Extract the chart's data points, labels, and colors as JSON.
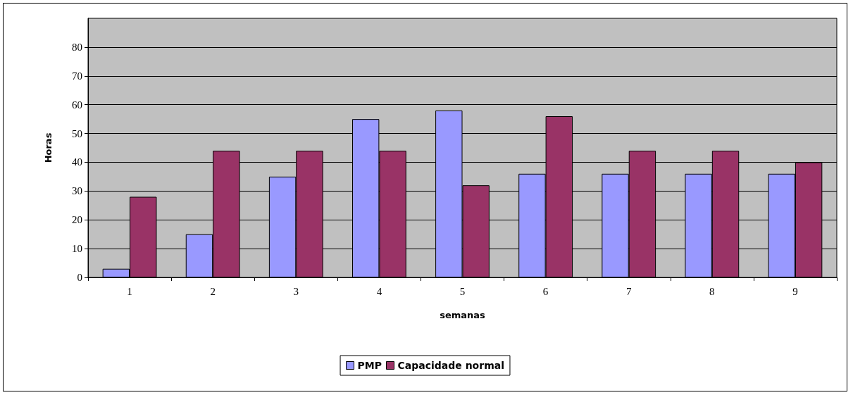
{
  "chart_data": {
    "type": "bar",
    "xlabel": "semanas",
    "ylabel": "Horas",
    "categories": [
      "1",
      "2",
      "3",
      "4",
      "5",
      "6",
      "7",
      "8",
      "9"
    ],
    "series": [
      {
        "name": "PMP",
        "color": "#9999ff",
        "values": [
          3,
          15,
          35,
          55,
          58,
          36,
          36,
          36,
          36
        ]
      },
      {
        "name": "Capacidade normal",
        "color": "#993366",
        "values": [
          28,
          44,
          44,
          44,
          32,
          56,
          44,
          44,
          40
        ]
      }
    ],
    "ylim": [
      0,
      90
    ],
    "yticks": [
      0,
      10,
      20,
      30,
      40,
      50,
      60,
      70,
      80
    ],
    "grid": "y",
    "legend": "bottom"
  }
}
